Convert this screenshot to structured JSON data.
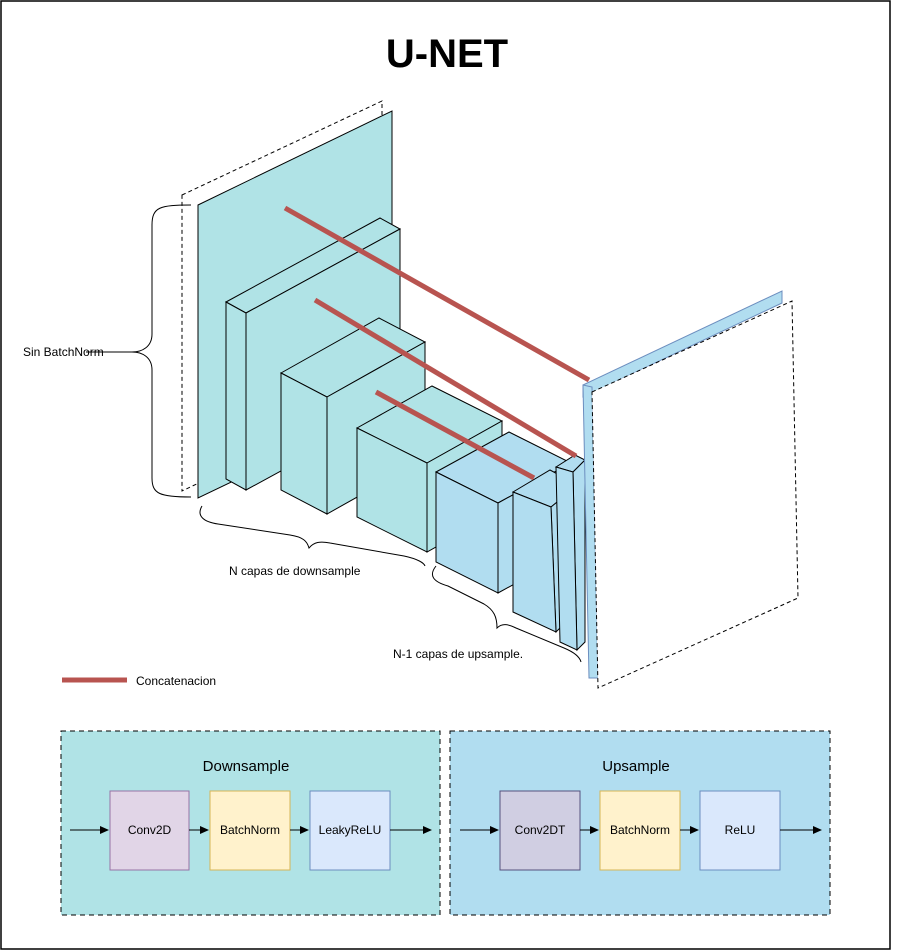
{
  "title": "U-NET",
  "labels": {
    "sin_batchnorm": "Sin BatchNorm",
    "downsample_layers": "N capas de downsample",
    "upsample_layers": "N-1 capas de upsample.",
    "legend_concat": "Concatenacion"
  },
  "blocks": {
    "downsample": {
      "title": "Downsample",
      "steps": [
        "Conv2D",
        "BatchNorm",
        "LeakyReLU"
      ]
    },
    "upsample": {
      "title": "Upsample",
      "steps": [
        "Conv2DT",
        "BatchNorm",
        "ReLU"
      ]
    }
  },
  "colors": {
    "encoder_face": "#b0e3e6",
    "decoder_face": "#b1ddf0",
    "concat_line": "#b85450",
    "conv2d": "#e1d5e7",
    "batchnorm": "#fff2cc",
    "leakyrelu": "#dae8fc",
    "conv2dt": "#d0cee2",
    "relu": "#dae8fc",
    "stroke_orange": "#d6b656",
    "stroke_purple": "#9673a6",
    "stroke_blue": "#6c8ebf",
    "stroke_slate": "#56517e"
  }
}
